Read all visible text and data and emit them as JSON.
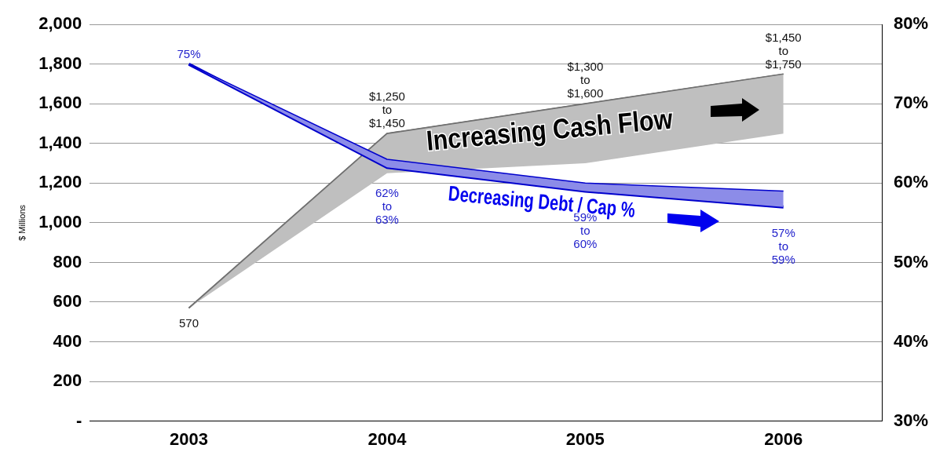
{
  "chart_data": {
    "type": "line",
    "ylabel": "$ Millions",
    "categories": [
      "2003",
      "2004",
      "2005",
      "2006"
    ],
    "series": [
      {
        "color": "#707070",
        "values": [
          570,
          1450,
          1600,
          1750
        ],
        "lower": [
          570,
          1250,
          1300,
          1450
        ],
        "upper": [
          570,
          1450,
          1600,
          1750
        ],
        "value_labels": [
          "570",
          "$1,250\nto\n$1,450",
          "$1,300\nto\n$1,600",
          "$1,450\nto\n$1,750"
        ]
      },
      {
        "color": "#0000cc",
        "axis": "y2",
        "values": [
          75,
          62,
          59,
          57
        ],
        "lower": [
          75,
          62,
          59,
          57
        ],
        "upper": [
          75,
          63,
          60,
          59
        ],
        "value_labels": [
          "75%",
          "62%\nto\n63%",
          "59%\nto\n60%",
          "57%\nto\n59%"
        ]
      }
    ],
    "annotations": [
      "Increasing Cash Flow",
      "Decreasing Debt / Cap %"
    ],
    "ylim": [
      0,
      2000
    ],
    "yticks": [
      {
        "value": 0,
        "label": "-"
      },
      {
        "value": 200,
        "label": "200"
      },
      {
        "value": 400,
        "label": "400"
      },
      {
        "value": 600,
        "label": "600"
      },
      {
        "value": 800,
        "label": "800"
      },
      {
        "value": 1000,
        "label": "1,000"
      },
      {
        "value": 1200,
        "label": "1,200"
      },
      {
        "value": 1400,
        "label": "1,400"
      },
      {
        "value": 1600,
        "label": "1,600"
      },
      {
        "value": 1800,
        "label": "1,800"
      },
      {
        "value": 2000,
        "label": "2,000"
      }
    ],
    "y2lim": [
      30,
      80
    ],
    "y2ticks": [
      {
        "value": 30,
        "label": "30%"
      },
      {
        "value": 40,
        "label": "40%"
      },
      {
        "value": 50,
        "label": "50%"
      },
      {
        "value": 60,
        "label": "60%"
      },
      {
        "value": 70,
        "label": "70%"
      },
      {
        "value": 80,
        "label": "80%"
      }
    ],
    "grid": "y",
    "legend": false,
    "marker": "none"
  }
}
